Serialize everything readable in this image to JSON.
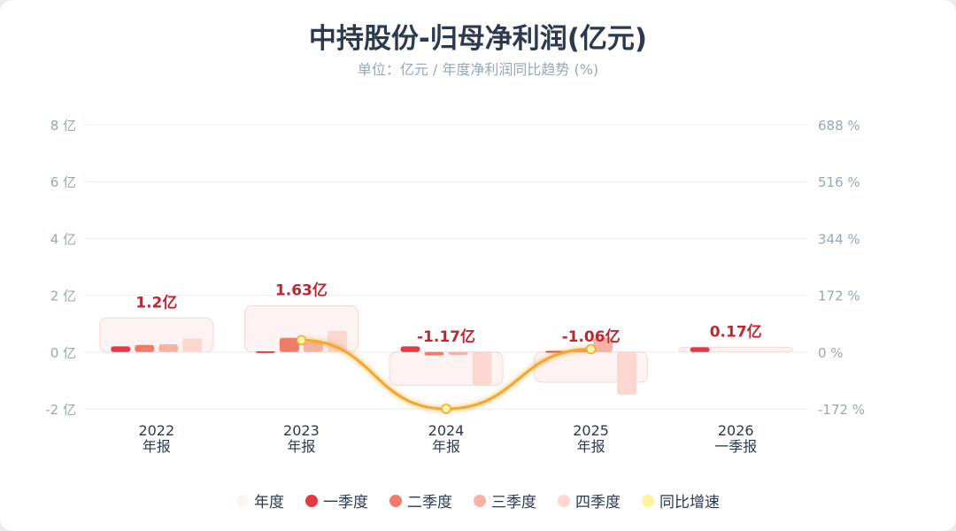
{
  "title": "中持股份-归母净利润(亿元)",
  "subtitle": "单位：亿元 / 年度净利润同比趋势 (%)",
  "colors": {
    "annual": "#fdf3f3",
    "q1": "#e63946",
    "q2": "#f07b6b",
    "q3": "#f7b1a5",
    "q4": "#fcd7d0",
    "yoy": "#f2a72e",
    "yoy_point": "#fff3a0",
    "label": "#c0262f"
  },
  "chart_data": {
    "type": "bar",
    "categories": [
      {
        "year": "2022",
        "period": "年报"
      },
      {
        "year": "2023",
        "period": "年报"
      },
      {
        "year": "2024",
        "period": "年报"
      },
      {
        "year": "2025",
        "period": "年报"
      },
      {
        "year": "2026",
        "period": "一季报"
      }
    ],
    "annual": [
      1.2,
      1.63,
      -1.17,
      -1.06,
      0.17
    ],
    "annual_labels": [
      "1.2亿",
      "1.63亿",
      "-1.17亿",
      "-1.06亿",
      "0.17亿"
    ],
    "quarters": {
      "q1": [
        0.2,
        0.03,
        0.2,
        0.04,
        0.17
      ],
      "q2": [
        0.25,
        0.5,
        -0.12,
        0.08,
        null
      ],
      "q3": [
        0.27,
        0.35,
        -0.1,
        0.5,
        null
      ],
      "q4": [
        0.48,
        0.75,
        -1.15,
        -1.5,
        null
      ]
    },
    "yoy": [
      null,
      36,
      -172,
      9,
      null
    ],
    "y_left": {
      "min": -2,
      "max": 8,
      "ticks": [
        -2,
        0,
        2,
        4,
        6,
        8
      ],
      "unit": "亿"
    },
    "y_right": {
      "ticks": [
        "-172 %",
        "0 %",
        "172 %",
        "344 %",
        "516 %",
        "688 %"
      ]
    },
    "grid": true,
    "legend_position": "bottom"
  },
  "legend": [
    {
      "label": "年度",
      "color": "#fdf3f3"
    },
    {
      "label": "一季度",
      "color": "#e63946"
    },
    {
      "label": "二季度",
      "color": "#f07b6b"
    },
    {
      "label": "三季度",
      "color": "#f7b1a5"
    },
    {
      "label": "四季度",
      "color": "#fcd7d0"
    },
    {
      "label": "同比增速",
      "color": "#fff3a0"
    }
  ]
}
